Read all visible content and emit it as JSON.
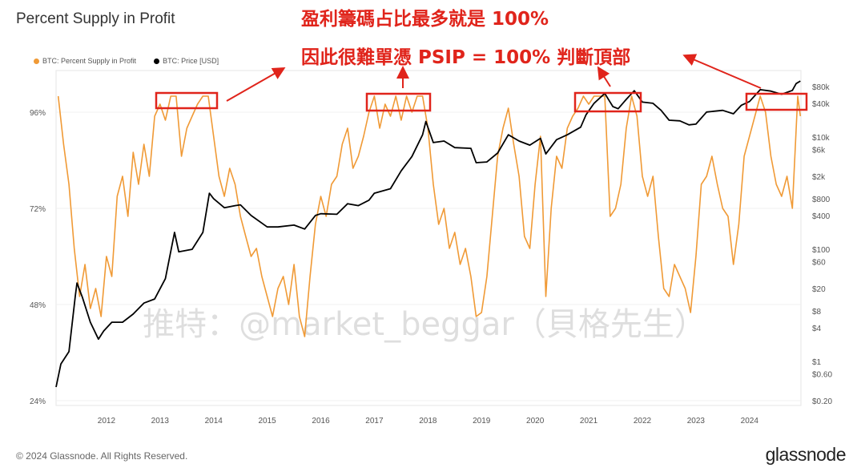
{
  "title": "Percent Supply in Profit",
  "annotations": {
    "line1": "盈利籌碼占比最多就是 100%",
    "line2": "因此很難單憑 PSIP = 100% 判斷頂部"
  },
  "watermark": "推特：@market_beggar（貝格先生）",
  "footer": "© 2024 Glassnode. All Rights Reserved.",
  "logo": "glassnode",
  "colors": {
    "psip": "#f09a36",
    "price": "#000000",
    "annotation": "#e0241b"
  },
  "chart_data": {
    "type": "line",
    "title": "Percent Supply in Profit",
    "legend": [
      "BTC: Percent Supply in Profit",
      "BTC: Price [USD]"
    ],
    "legend_placement": "top-left",
    "x_ticks": [
      "2012",
      "2013",
      "2014",
      "2015",
      "2016",
      "2017",
      "2018",
      "2019",
      "2020",
      "2021",
      "2022",
      "2023",
      "2024"
    ],
    "xlim": [
      2011.06,
      2024.96
    ],
    "left_axis": {
      "ticks": [
        "24%",
        "48%",
        "72%",
        "96%"
      ],
      "tick_values": [
        24,
        48,
        72,
        96
      ],
      "ylim": [
        23,
        106.4
      ]
    },
    "right_axis": {
      "scale": "log",
      "ticks": [
        "$0.20",
        "$0.60",
        "$1",
        "$4",
        "$8",
        "$20",
        "$60",
        "$100",
        "$400",
        "$800",
        "$2k",
        "$6k",
        "$10k",
        "$40k",
        "$80k"
      ],
      "tick_values": [
        0.2,
        0.6,
        1,
        4,
        8,
        20,
        60,
        100,
        400,
        800,
        2000,
        6000,
        10000,
        40000,
        80000
      ]
    },
    "series": [
      {
        "name": "BTC: Percent Supply in Profit",
        "axis": "left",
        "points": [
          [
            2011.1,
            100
          ],
          [
            2011.2,
            88
          ],
          [
            2011.3,
            78
          ],
          [
            2011.4,
            62
          ],
          [
            2011.5,
            50
          ],
          [
            2011.6,
            58
          ],
          [
            2011.7,
            47
          ],
          [
            2011.8,
            52
          ],
          [
            2011.9,
            45
          ],
          [
            2012.0,
            60
          ],
          [
            2012.1,
            55
          ],
          [
            2012.2,
            75
          ],
          [
            2012.3,
            80
          ],
          [
            2012.4,
            70
          ],
          [
            2012.5,
            86
          ],
          [
            2012.6,
            78
          ],
          [
            2012.7,
            88
          ],
          [
            2012.8,
            80
          ],
          [
            2012.9,
            95
          ],
          [
            2013.0,
            98
          ],
          [
            2013.1,
            94
          ],
          [
            2013.2,
            100
          ],
          [
            2013.3,
            100
          ],
          [
            2013.4,
            85
          ],
          [
            2013.5,
            92
          ],
          [
            2013.6,
            95
          ],
          [
            2013.7,
            98
          ],
          [
            2013.8,
            100
          ],
          [
            2013.9,
            100
          ],
          [
            2014.0,
            90
          ],
          [
            2014.1,
            80
          ],
          [
            2014.2,
            75
          ],
          [
            2014.3,
            82
          ],
          [
            2014.4,
            78
          ],
          [
            2014.5,
            70
          ],
          [
            2014.6,
            65
          ],
          [
            2014.7,
            60
          ],
          [
            2014.8,
            62
          ],
          [
            2014.9,
            55
          ],
          [
            2015.0,
            50
          ],
          [
            2015.1,
            45
          ],
          [
            2015.2,
            52
          ],
          [
            2015.3,
            55
          ],
          [
            2015.4,
            48
          ],
          [
            2015.5,
            58
          ],
          [
            2015.6,
            45
          ],
          [
            2015.7,
            40
          ],
          [
            2015.8,
            55
          ],
          [
            2015.9,
            68
          ],
          [
            2016.0,
            75
          ],
          [
            2016.1,
            70
          ],
          [
            2016.2,
            78
          ],
          [
            2016.3,
            80
          ],
          [
            2016.4,
            88
          ],
          [
            2016.5,
            92
          ],
          [
            2016.6,
            82
          ],
          [
            2016.7,
            85
          ],
          [
            2016.8,
            90
          ],
          [
            2016.9,
            96
          ],
          [
            2017.0,
            100
          ],
          [
            2017.1,
            92
          ],
          [
            2017.2,
            98
          ],
          [
            2017.3,
            95
          ],
          [
            2017.4,
            100
          ],
          [
            2017.5,
            94
          ],
          [
            2017.6,
            100
          ],
          [
            2017.7,
            96
          ],
          [
            2017.8,
            100
          ],
          [
            2017.9,
            100
          ],
          [
            2018.0,
            92
          ],
          [
            2018.1,
            78
          ],
          [
            2018.2,
            68
          ],
          [
            2018.3,
            72
          ],
          [
            2018.4,
            62
          ],
          [
            2018.5,
            66
          ],
          [
            2018.6,
            58
          ],
          [
            2018.7,
            62
          ],
          [
            2018.8,
            55
          ],
          [
            2018.9,
            45
          ],
          [
            2019.0,
            46
          ],
          [
            2019.1,
            55
          ],
          [
            2019.2,
            70
          ],
          [
            2019.3,
            85
          ],
          [
            2019.4,
            92
          ],
          [
            2019.5,
            97
          ],
          [
            2019.6,
            88
          ],
          [
            2019.7,
            80
          ],
          [
            2019.8,
            65
          ],
          [
            2019.9,
            62
          ],
          [
            2020.0,
            78
          ],
          [
            2020.1,
            90
          ],
          [
            2020.2,
            50
          ],
          [
            2020.3,
            72
          ],
          [
            2020.4,
            85
          ],
          [
            2020.5,
            82
          ],
          [
            2020.6,
            92
          ],
          [
            2020.7,
            95
          ],
          [
            2020.8,
            97
          ],
          [
            2020.9,
            100
          ],
          [
            2021.0,
            98
          ],
          [
            2021.1,
            100
          ],
          [
            2021.2,
            100
          ],
          [
            2021.3,
            100
          ],
          [
            2021.4,
            70
          ],
          [
            2021.5,
            72
          ],
          [
            2021.6,
            78
          ],
          [
            2021.7,
            92
          ],
          [
            2021.8,
            100
          ],
          [
            2021.9,
            95
          ],
          [
            2022.0,
            80
          ],
          [
            2022.1,
            75
          ],
          [
            2022.2,
            80
          ],
          [
            2022.3,
            65
          ],
          [
            2022.4,
            52
          ],
          [
            2022.5,
            50
          ],
          [
            2022.6,
            58
          ],
          [
            2022.7,
            55
          ],
          [
            2022.8,
            52
          ],
          [
            2022.9,
            46
          ],
          [
            2023.0,
            60
          ],
          [
            2023.1,
            78
          ],
          [
            2023.2,
            80
          ],
          [
            2023.3,
            85
          ],
          [
            2023.4,
            78
          ],
          [
            2023.5,
            72
          ],
          [
            2023.6,
            70
          ],
          [
            2023.7,
            58
          ],
          [
            2023.8,
            68
          ],
          [
            2023.9,
            85
          ],
          [
            2024.0,
            90
          ],
          [
            2024.1,
            95
          ],
          [
            2024.2,
            100
          ],
          [
            2024.3,
            96
          ],
          [
            2024.4,
            85
          ],
          [
            2024.5,
            78
          ],
          [
            2024.6,
            75
          ],
          [
            2024.7,
            80
          ],
          [
            2024.8,
            72
          ],
          [
            2024.9,
            100
          ],
          [
            2024.95,
            95
          ]
        ]
      },
      {
        "name": "BTC: Price [USD]",
        "axis": "right",
        "points": [
          [
            2011.06,
            0.35
          ],
          [
            2011.15,
            0.9
          ],
          [
            2011.3,
            1.5
          ],
          [
            2011.42,
            15
          ],
          [
            2011.45,
            25
          ],
          [
            2011.55,
            14
          ],
          [
            2011.7,
            5
          ],
          [
            2011.85,
            2.5
          ],
          [
            2011.95,
            3.5
          ],
          [
            2012.1,
            5
          ],
          [
            2012.3,
            5
          ],
          [
            2012.5,
            7
          ],
          [
            2012.7,
            11
          ],
          [
            2012.9,
            13
          ],
          [
            2013.1,
            30
          ],
          [
            2013.27,
            200
          ],
          [
            2013.35,
            90
          ],
          [
            2013.6,
            100
          ],
          [
            2013.8,
            200
          ],
          [
            2013.92,
            1000
          ],
          [
            2014.0,
            800
          ],
          [
            2014.2,
            550
          ],
          [
            2014.4,
            600
          ],
          [
            2014.5,
            620
          ],
          [
            2014.7,
            400
          ],
          [
            2015.0,
            250
          ],
          [
            2015.2,
            250
          ],
          [
            2015.5,
            270
          ],
          [
            2015.7,
            230
          ],
          [
            2015.9,
            400
          ],
          [
            2016.0,
            430
          ],
          [
            2016.3,
            420
          ],
          [
            2016.5,
            650
          ],
          [
            2016.7,
            600
          ],
          [
            2016.9,
            750
          ],
          [
            2017.0,
            1000
          ],
          [
            2017.3,
            1200
          ],
          [
            2017.5,
            2500
          ],
          [
            2017.7,
            4500
          ],
          [
            2017.9,
            11000
          ],
          [
            2017.96,
            19000
          ],
          [
            2018.1,
            8000
          ],
          [
            2018.3,
            8500
          ],
          [
            2018.5,
            6500
          ],
          [
            2018.8,
            6300
          ],
          [
            2018.9,
            3500
          ],
          [
            2019.1,
            3600
          ],
          [
            2019.3,
            5200
          ],
          [
            2019.5,
            11000
          ],
          [
            2019.7,
            8500
          ],
          [
            2019.9,
            7200
          ],
          [
            2020.1,
            9500
          ],
          [
            2020.2,
            5000
          ],
          [
            2020.4,
            9000
          ],
          [
            2020.6,
            11000
          ],
          [
            2020.85,
            15000
          ],
          [
            2020.95,
            25000
          ],
          [
            2021.1,
            40000
          ],
          [
            2021.3,
            60000
          ],
          [
            2021.45,
            35000
          ],
          [
            2021.55,
            32000
          ],
          [
            2021.7,
            47000
          ],
          [
            2021.85,
            67000
          ],
          [
            2022.0,
            42000
          ],
          [
            2022.2,
            40000
          ],
          [
            2022.35,
            30000
          ],
          [
            2022.5,
            20000
          ],
          [
            2022.7,
            19500
          ],
          [
            2022.87,
            16500
          ],
          [
            2023.0,
            17000
          ],
          [
            2023.2,
            28000
          ],
          [
            2023.5,
            30000
          ],
          [
            2023.7,
            26000
          ],
          [
            2023.85,
            37000
          ],
          [
            2024.0,
            43000
          ],
          [
            2024.2,
            70000
          ],
          [
            2024.4,
            66000
          ],
          [
            2024.6,
            58000
          ],
          [
            2024.8,
            68000
          ],
          [
            2024.87,
            90000
          ],
          [
            2024.95,
            100000
          ]
        ]
      }
    ]
  }
}
